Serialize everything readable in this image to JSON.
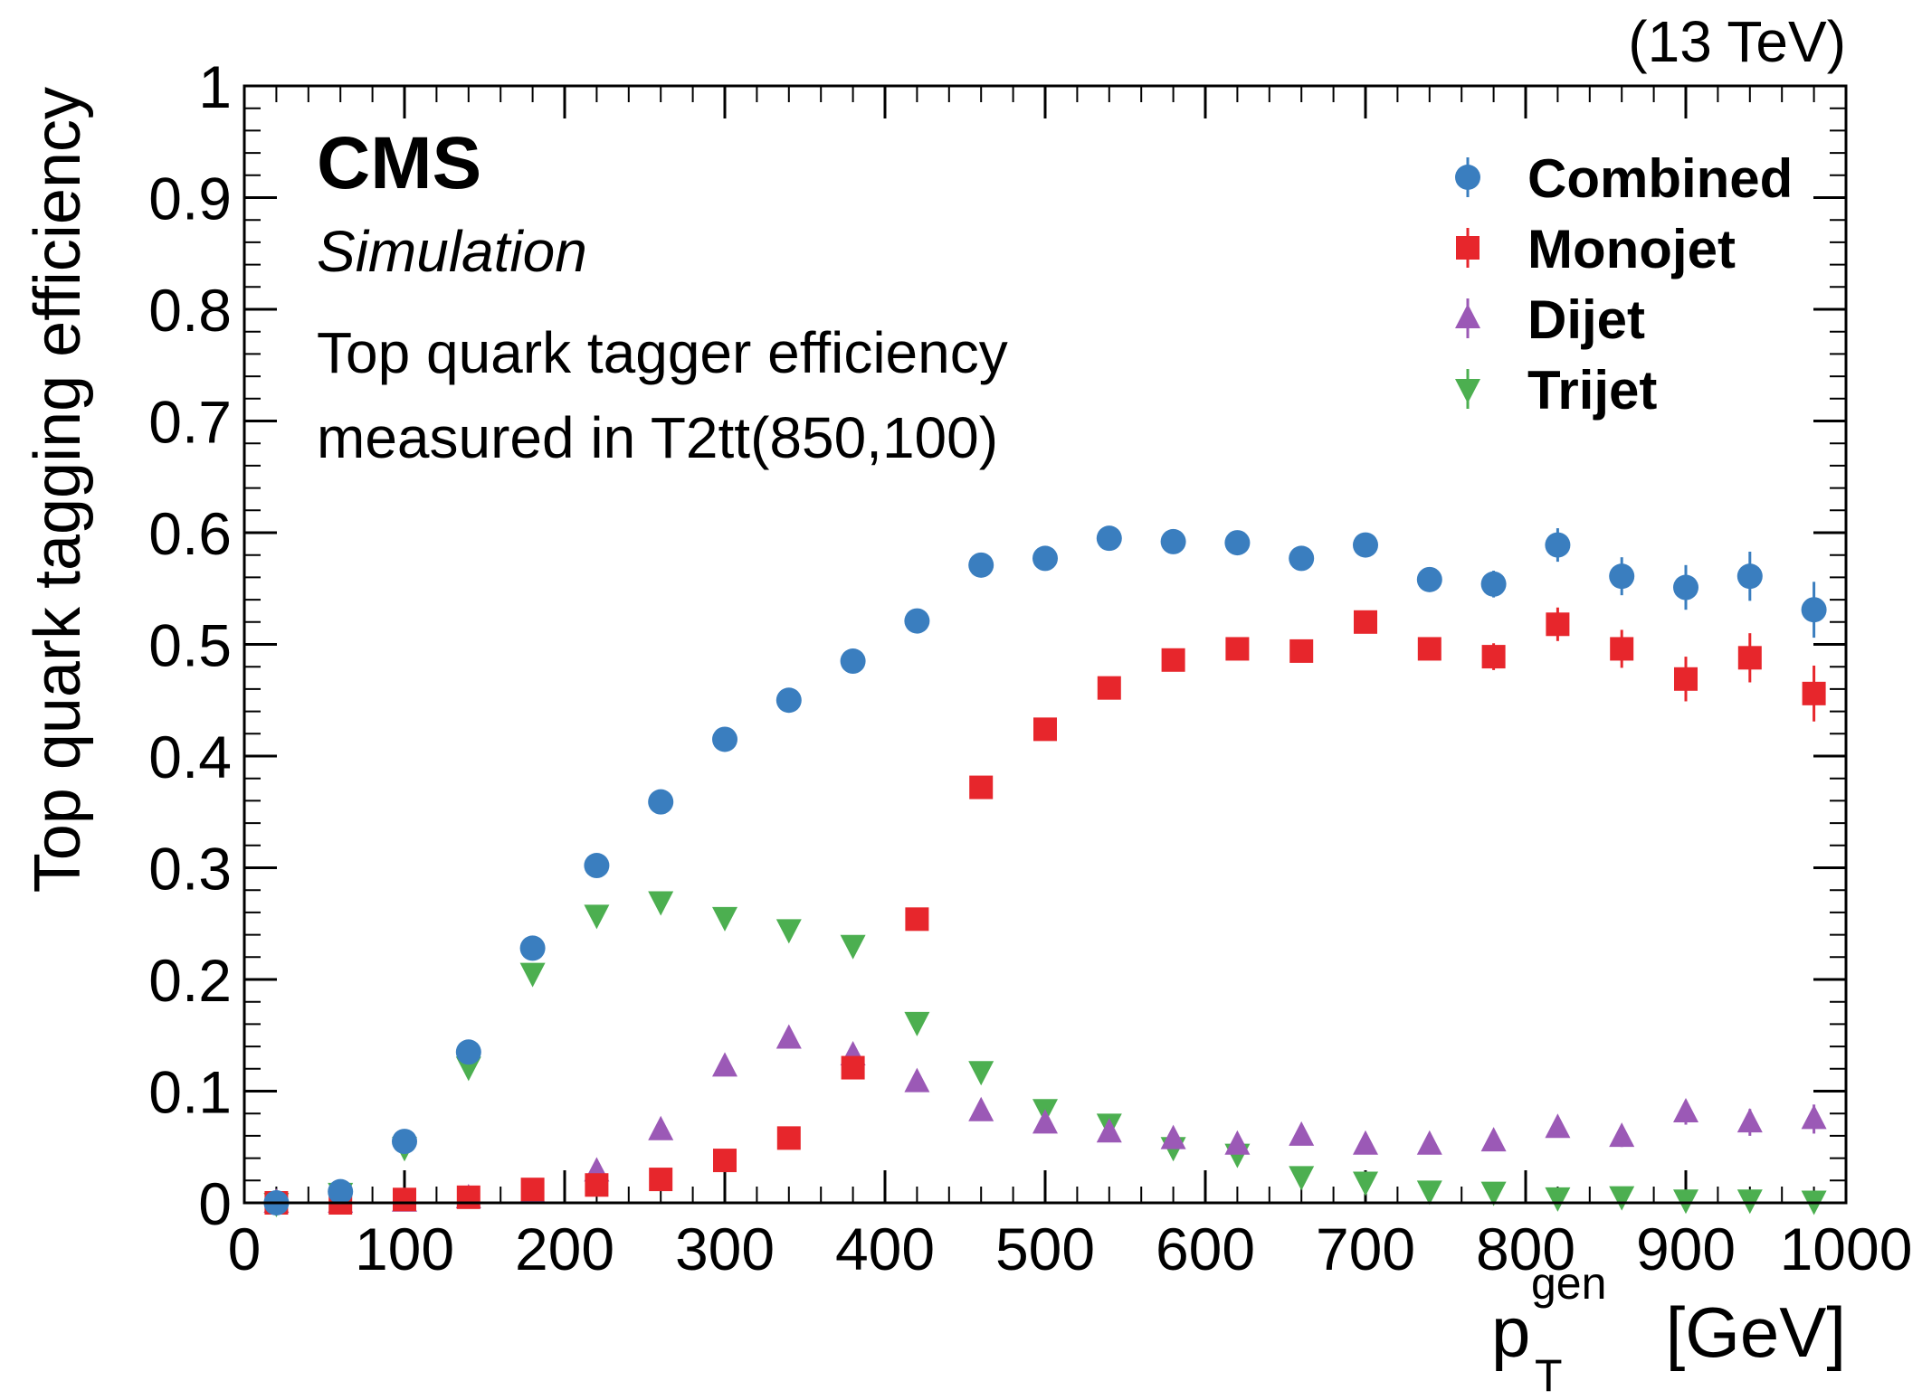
{
  "chart_data": {
    "type": "scatter",
    "header_right": "(13 TeV)",
    "annotations": {
      "experiment": "CMS",
      "status": "Simulation",
      "line1": "Top quark tagger efficiency",
      "line2": "measured in T2tt(850,100)"
    },
    "xlabel_main": "p",
    "xlabel_sub": "T",
    "xlabel_sup": "gen",
    "xlabel_unit": "[GeV]",
    "ylabel": "Top quark tagging efficiency",
    "xlim": [
      0,
      1000
    ],
    "ylim": [
      0,
      1
    ],
    "x_ticks": [
      "0",
      "100",
      "200",
      "300",
      "400",
      "500",
      "600",
      "700",
      "800",
      "900",
      "1000"
    ],
    "y_ticks": [
      "0",
      "0.1",
      "0.2",
      "0.3",
      "0.4",
      "0.5",
      "0.6",
      "0.7",
      "0.8",
      "0.9",
      "1"
    ],
    "legend_position": "top-right",
    "x": [
      20,
      60,
      100,
      140,
      180,
      220,
      260,
      300,
      340,
      380,
      420,
      460,
      500,
      540,
      580,
      620,
      660,
      700,
      740,
      780,
      820,
      860,
      900,
      940,
      980
    ],
    "series": [
      {
        "name": "Combined",
        "marker": "circle",
        "color": "#3a7ebf",
        "values": [
          0.0,
          0.01,
          0.055,
          0.135,
          0.228,
          0.302,
          0.359,
          0.415,
          0.45,
          0.485,
          0.521,
          0.571,
          0.577,
          0.595,
          0.592,
          0.591,
          0.577,
          0.589,
          0.558,
          0.554,
          0.589,
          0.561,
          0.551,
          0.561,
          0.531
        ],
        "errors": [
          0,
          0,
          0,
          0,
          0,
          0,
          0,
          0,
          0,
          0,
          0,
          0,
          0,
          0,
          0,
          0,
          0,
          0,
          0.01,
          0.012,
          0.015,
          0.017,
          0.02,
          0.022,
          0.025
        ]
      },
      {
        "name": "Monojet",
        "marker": "square",
        "color": "#e7262c",
        "values": [
          0.0,
          0.0,
          0.003,
          0.005,
          0.012,
          0.016,
          0.021,
          0.038,
          0.058,
          0.121,
          0.254,
          0.372,
          0.424,
          0.461,
          0.486,
          0.496,
          0.494,
          0.52,
          0.496,
          0.489,
          0.518,
          0.496,
          0.469,
          0.488,
          0.456
        ],
        "errors": [
          0,
          0,
          0,
          0,
          0,
          0,
          0,
          0,
          0,
          0,
          0,
          0,
          0,
          0,
          0,
          0,
          0,
          0,
          0.01,
          0.012,
          0.015,
          0.017,
          0.02,
          0.022,
          0.025
        ]
      },
      {
        "name": "Dijet",
        "marker": "triangle-up",
        "color": "#9b59b6",
        "values": [
          0.0,
          0.0,
          0.001,
          0.004,
          0.009,
          0.028,
          0.065,
          0.122,
          0.147,
          0.132,
          0.108,
          0.082,
          0.071,
          0.063,
          0.057,
          0.052,
          0.06,
          0.052,
          0.052,
          0.055,
          0.067,
          0.059,
          0.081,
          0.072,
          0.075
        ],
        "errors": [
          0,
          0,
          0,
          0,
          0,
          0,
          0,
          0,
          0,
          0,
          0,
          0,
          0,
          0,
          0,
          0,
          0,
          0,
          0.006,
          0.007,
          0.008,
          0.009,
          0.011,
          0.012,
          0.013
        ]
      },
      {
        "name": "Trijet",
        "marker": "triangle-down",
        "color": "#4caf50",
        "values": [
          0.0,
          0.009,
          0.05,
          0.122,
          0.206,
          0.258,
          0.27,
          0.256,
          0.245,
          0.231,
          0.162,
          0.118,
          0.084,
          0.071,
          0.05,
          0.044,
          0.024,
          0.019,
          0.011,
          0.01,
          0.005,
          0.006,
          0.003,
          0.003,
          0.002
        ],
        "errors": [
          0,
          0,
          0,
          0,
          0,
          0,
          0,
          0,
          0,
          0,
          0,
          0,
          0,
          0,
          0,
          0,
          0,
          0,
          0.004,
          0.004,
          0.004,
          0.004,
          0.004,
          0.004,
          0.004
        ]
      }
    ]
  }
}
